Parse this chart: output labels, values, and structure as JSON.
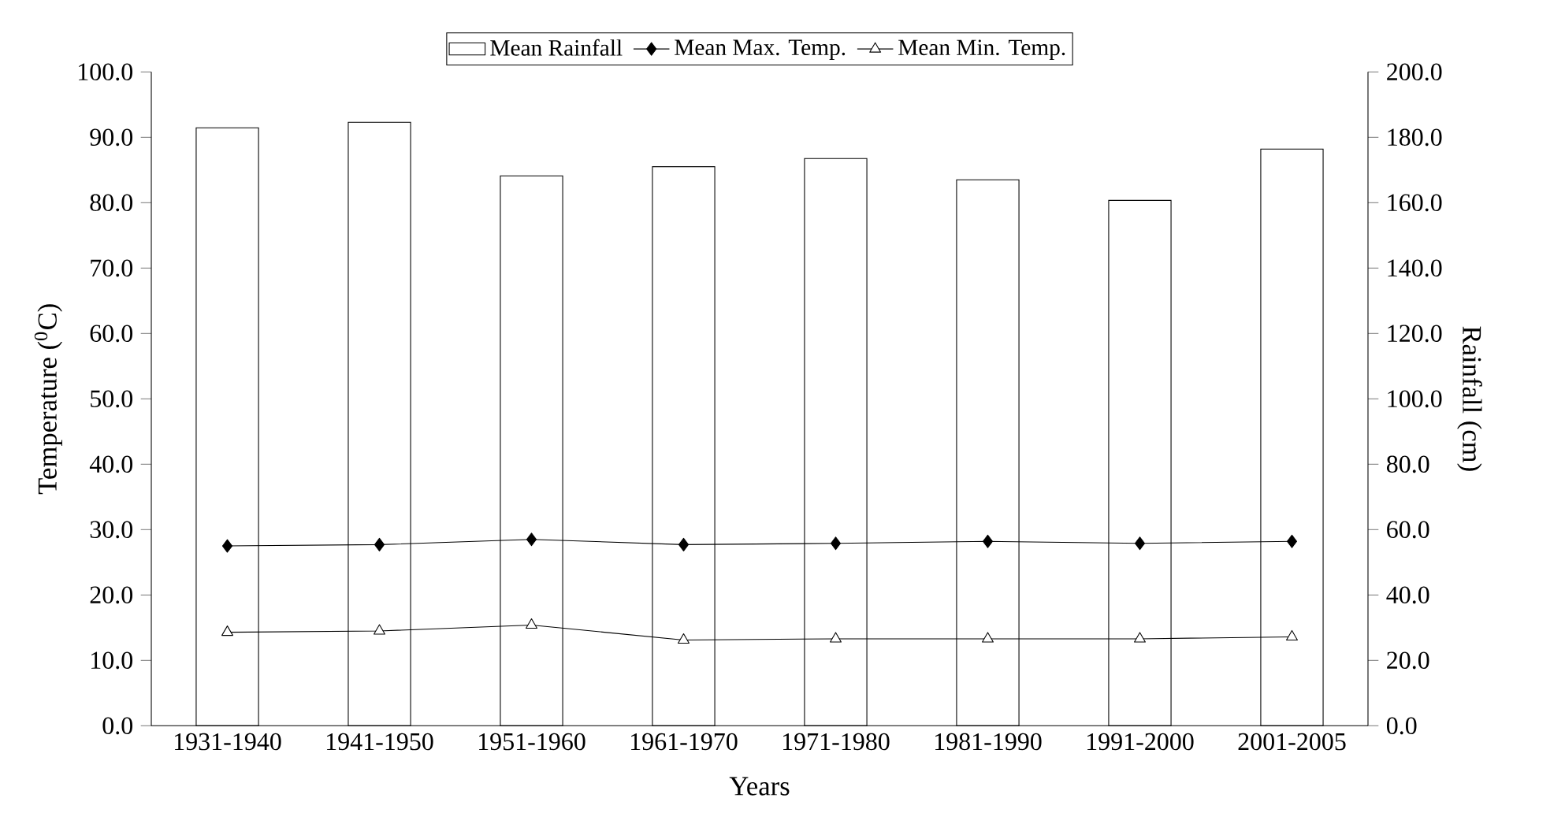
{
  "chart_data": {
    "type": "bar",
    "categories": [
      "1931-1940",
      "1941-1950",
      "1951-1960",
      "1961-1970",
      "1971-1980",
      "1981-1990",
      "1991-2000",
      "2001-2005"
    ],
    "series": [
      {
        "name": "Mean Rainfall",
        "axis": "y2",
        "color": "#ffffff",
        "values": [
          182.9,
          184.6,
          168.2,
          171.0,
          173.5,
          167.0,
          160.7,
          176.4
        ]
      },
      {
        "name": "Mean Max. Temp.",
        "type": "line",
        "marker": "diamond",
        "color": "#000000",
        "values": [
          27.5,
          27.7,
          28.5,
          27.7,
          27.9,
          28.2,
          27.9,
          28.2
        ]
      },
      {
        "name": "Mean Min. Temp.",
        "type": "line",
        "marker": "triangle",
        "color": "#000000",
        "values": [
          14.3,
          14.5,
          15.4,
          13.1,
          13.3,
          13.3,
          13.3,
          13.6
        ]
      }
    ],
    "xlabel": "Years",
    "ylabel": "Temperature ($^{0}$C)",
    "y2label": "Rainfall (cm)",
    "ylim": [
      0,
      100
    ],
    "yticks": [
      {
        "value": 0,
        "label": "0.0"
      },
      {
        "value": 10,
        "label": "10.0"
      },
      {
        "value": 20,
        "label": "20.0"
      },
      {
        "value": 30,
        "label": "30.0"
      },
      {
        "value": 40,
        "label": "40.0"
      },
      {
        "value": 50,
        "label": "50.0"
      },
      {
        "value": 60,
        "label": "60.0"
      },
      {
        "value": 70,
        "label": "70.0"
      },
      {
        "value": 80,
        "label": "80.0"
      },
      {
        "value": 90,
        "label": "90.0"
      },
      {
        "value": 100,
        "label": "100.0"
      }
    ],
    "y2lim": [
      0,
      200
    ],
    "y2ticks": [
      {
        "value": 0,
        "label": "0.0"
      },
      {
        "value": 20,
        "label": "20.0"
      },
      {
        "value": 40,
        "label": "40.0"
      },
      {
        "value": 60,
        "label": "60.0"
      },
      {
        "value": 80,
        "label": "80.0"
      },
      {
        "value": 100,
        "label": "100.0"
      },
      {
        "value": 120,
        "label": "120.0"
      },
      {
        "value": 140,
        "label": "140.0"
      },
      {
        "value": 160,
        "label": "160.0"
      },
      {
        "value": 180,
        "label": "180.0"
      },
      {
        "value": 200,
        "label": "200.0"
      }
    ],
    "legend": "top",
    "grid": false
  }
}
